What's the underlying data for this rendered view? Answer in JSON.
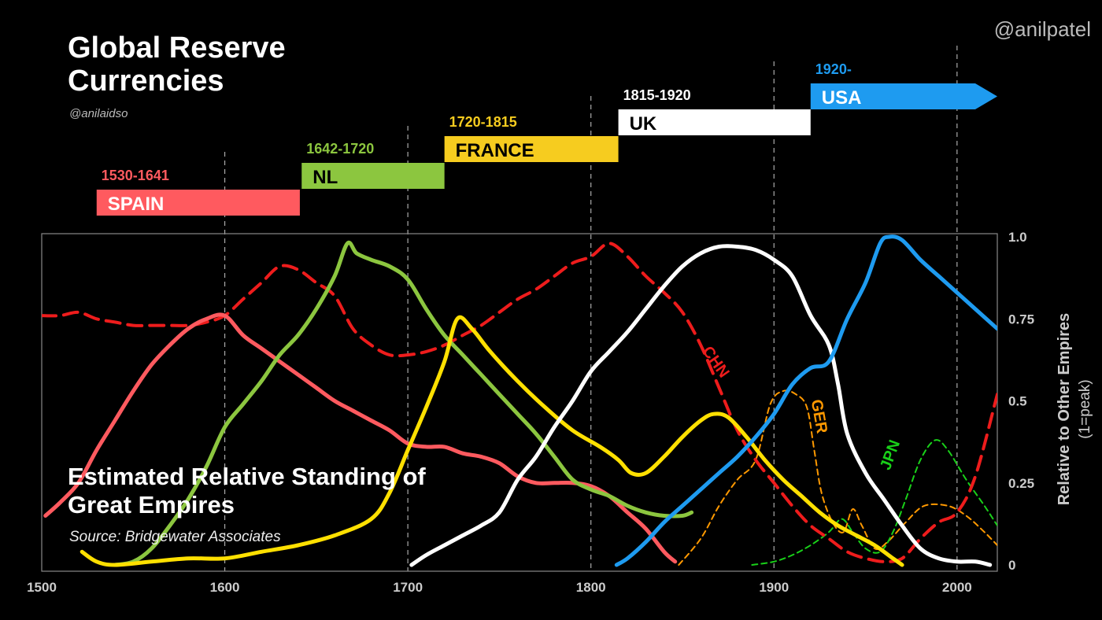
{
  "header": {
    "title": "Global Reserve Currencies",
    "byline": "@anilaidso",
    "handle": "@anilpatel"
  },
  "chart_title": "Estimated Relative Standing of Great Empires",
  "source": "Source: Bridgewater Associates",
  "colors": {
    "spain": "#ff5a5f",
    "nl": "#8cc63f",
    "france": "#f6cc1f",
    "uk": "#ffffff",
    "usa": "#1e9bf0",
    "chn": "#ee1c1c",
    "ger": "#ff9900",
    "jpn": "#19d019",
    "france_line": "#ffe000"
  },
  "eras": [
    {
      "name": "SPAIN",
      "years": "1530-1641",
      "start": 1530,
      "end": 1641,
      "color": "#ff5a5f",
      "text_color": "#ffffff"
    },
    {
      "name": "NL",
      "years": "1642-1720",
      "start": 1642,
      "end": 1720,
      "color": "#8cc63f",
      "text_color": "#000000"
    },
    {
      "name": "FRANCE",
      "years": "1720-1815",
      "start": 1720,
      "end": 1815,
      "color": "#f6cc1f",
      "text_color": "#000000"
    },
    {
      "name": "UK",
      "years": "1815-1920",
      "start": 1815,
      "end": 1920,
      "color": "#ffffff",
      "text_color": "#000000"
    },
    {
      "name": "USA",
      "years": "1920-",
      "start": 1920,
      "end": 2022,
      "color": "#1e9bf0",
      "text_color": "#ffffff"
    }
  ],
  "chart_data": {
    "type": "line",
    "title": "Estimated Relative Standing of Great Empires",
    "xlabel": "",
    "ylabel": "Relative to Other Empires (1=peak)",
    "ylabel_line1": "Relative to Other Empires",
    "ylabel_line2": "(1=peak)",
    "xlim": [
      1500,
      2022
    ],
    "ylim": [
      0,
      1
    ],
    "xticks": [
      1500,
      1600,
      1700,
      1800,
      1900,
      2000
    ],
    "yticks": [
      {
        "value": 1.0,
        "label": "1.0"
      },
      {
        "value": 0.75,
        "label": "0.75"
      },
      {
        "value": 0.5,
        "label": "0.5"
      },
      {
        "value": 0.25,
        "label": "0.25"
      },
      {
        "value": 0,
        "label": "0"
      }
    ],
    "vlines": [
      1600,
      1700,
      1800,
      1900,
      2000
    ],
    "series": [
      {
        "key": "spain",
        "color": "#ff5a5f",
        "width": 5,
        "dash": "",
        "points": [
          [
            1502,
            0.15
          ],
          [
            1510,
            0.19
          ],
          [
            1520,
            0.25
          ],
          [
            1530,
            0.35
          ],
          [
            1540,
            0.44
          ],
          [
            1550,
            0.53
          ],
          [
            1560,
            0.61
          ],
          [
            1570,
            0.67
          ],
          [
            1580,
            0.72
          ],
          [
            1590,
            0.75
          ],
          [
            1600,
            0.76
          ],
          [
            1610,
            0.7
          ],
          [
            1620,
            0.66
          ],
          [
            1630,
            0.62
          ],
          [
            1640,
            0.58
          ],
          [
            1650,
            0.54
          ],
          [
            1660,
            0.5
          ],
          [
            1670,
            0.47
          ],
          [
            1680,
            0.44
          ],
          [
            1690,
            0.41
          ],
          [
            1700,
            0.37
          ],
          [
            1710,
            0.36
          ],
          [
            1720,
            0.36
          ],
          [
            1730,
            0.34
          ],
          [
            1740,
            0.33
          ],
          [
            1750,
            0.31
          ],
          [
            1760,
            0.27
          ],
          [
            1770,
            0.25
          ],
          [
            1780,
            0.25
          ],
          [
            1790,
            0.25
          ],
          [
            1800,
            0.24
          ],
          [
            1810,
            0.21
          ],
          [
            1820,
            0.16
          ],
          [
            1830,
            0.11
          ],
          [
            1840,
            0.04
          ],
          [
            1846,
            0.01
          ]
        ]
      },
      {
        "key": "nl",
        "color": "#8cc63f",
        "width": 5,
        "dash": "",
        "points": [
          [
            1540,
            0.0
          ],
          [
            1550,
            0.01
          ],
          [
            1560,
            0.05
          ],
          [
            1570,
            0.12
          ],
          [
            1580,
            0.2
          ],
          [
            1590,
            0.3
          ],
          [
            1600,
            0.42
          ],
          [
            1610,
            0.49
          ],
          [
            1620,
            0.56
          ],
          [
            1630,
            0.64
          ],
          [
            1640,
            0.7
          ],
          [
            1650,
            0.78
          ],
          [
            1660,
            0.88
          ],
          [
            1667,
            0.98
          ],
          [
            1672,
            0.95
          ],
          [
            1680,
            0.93
          ],
          [
            1690,
            0.91
          ],
          [
            1700,
            0.87
          ],
          [
            1710,
            0.78
          ],
          [
            1720,
            0.7
          ],
          [
            1730,
            0.64
          ],
          [
            1740,
            0.58
          ],
          [
            1750,
            0.52
          ],
          [
            1760,
            0.46
          ],
          [
            1770,
            0.4
          ],
          [
            1780,
            0.33
          ],
          [
            1790,
            0.26
          ],
          [
            1800,
            0.23
          ],
          [
            1810,
            0.21
          ],
          [
            1820,
            0.18
          ],
          [
            1830,
            0.16
          ],
          [
            1840,
            0.15
          ],
          [
            1850,
            0.15
          ],
          [
            1855,
            0.16
          ]
        ]
      },
      {
        "key": "france",
        "color": "#ffe000",
        "width": 5,
        "dash": "",
        "points": [
          [
            1522,
            0.04
          ],
          [
            1530,
            0.01
          ],
          [
            1540,
            0.0
          ],
          [
            1560,
            0.01
          ],
          [
            1580,
            0.02
          ],
          [
            1600,
            0.02
          ],
          [
            1620,
            0.04
          ],
          [
            1640,
            0.06
          ],
          [
            1660,
            0.09
          ],
          [
            1680,
            0.14
          ],
          [
            1690,
            0.22
          ],
          [
            1700,
            0.35
          ],
          [
            1710,
            0.48
          ],
          [
            1720,
            0.62
          ],
          [
            1727,
            0.75
          ],
          [
            1735,
            0.72
          ],
          [
            1745,
            0.65
          ],
          [
            1760,
            0.56
          ],
          [
            1775,
            0.48
          ],
          [
            1790,
            0.41
          ],
          [
            1805,
            0.36
          ],
          [
            1815,
            0.32
          ],
          [
            1822,
            0.28
          ],
          [
            1830,
            0.28
          ],
          [
            1840,
            0.33
          ],
          [
            1850,
            0.39
          ],
          [
            1860,
            0.44
          ],
          [
            1867,
            0.46
          ],
          [
            1875,
            0.45
          ],
          [
            1885,
            0.39
          ],
          [
            1895,
            0.32
          ],
          [
            1905,
            0.26
          ],
          [
            1915,
            0.21
          ],
          [
            1925,
            0.16
          ],
          [
            1935,
            0.12
          ],
          [
            1945,
            0.09
          ],
          [
            1955,
            0.06
          ],
          [
            1965,
            0.02
          ],
          [
            1970,
            0.0
          ]
        ]
      },
      {
        "key": "uk",
        "color": "#ffffff",
        "width": 5,
        "dash": "",
        "points": [
          [
            1702,
            0.0
          ],
          [
            1710,
            0.03
          ],
          [
            1720,
            0.06
          ],
          [
            1730,
            0.09
          ],
          [
            1740,
            0.12
          ],
          [
            1750,
            0.16
          ],
          [
            1760,
            0.26
          ],
          [
            1770,
            0.33
          ],
          [
            1780,
            0.42
          ],
          [
            1790,
            0.5
          ],
          [
            1800,
            0.59
          ],
          [
            1810,
            0.65
          ],
          [
            1820,
            0.71
          ],
          [
            1830,
            0.78
          ],
          [
            1840,
            0.85
          ],
          [
            1850,
            0.91
          ],
          [
            1860,
            0.95
          ],
          [
            1870,
            0.97
          ],
          [
            1880,
            0.97
          ],
          [
            1890,
            0.96
          ],
          [
            1900,
            0.93
          ],
          [
            1910,
            0.88
          ],
          [
            1920,
            0.76
          ],
          [
            1930,
            0.67
          ],
          [
            1935,
            0.55
          ],
          [
            1940,
            0.4
          ],
          [
            1950,
            0.28
          ],
          [
            1960,
            0.2
          ],
          [
            1970,
            0.12
          ],
          [
            1980,
            0.05
          ],
          [
            1990,
            0.02
          ],
          [
            2000,
            0.01
          ],
          [
            2010,
            0.01
          ],
          [
            2018,
            0.0
          ]
        ]
      },
      {
        "key": "usa",
        "color": "#1e9bf0",
        "width": 5,
        "dash": "",
        "points": [
          [
            1814,
            0.0
          ],
          [
            1820,
            0.02
          ],
          [
            1830,
            0.07
          ],
          [
            1840,
            0.13
          ],
          [
            1850,
            0.18
          ],
          [
            1860,
            0.23
          ],
          [
            1870,
            0.28
          ],
          [
            1880,
            0.33
          ],
          [
            1890,
            0.39
          ],
          [
            1900,
            0.46
          ],
          [
            1910,
            0.55
          ],
          [
            1920,
            0.6
          ],
          [
            1930,
            0.62
          ],
          [
            1940,
            0.75
          ],
          [
            1950,
            0.86
          ],
          [
            1958,
            0.98
          ],
          [
            1963,
            1.0
          ],
          [
            1970,
            0.99
          ],
          [
            1980,
            0.93
          ],
          [
            1990,
            0.88
          ],
          [
            2000,
            0.83
          ],
          [
            2010,
            0.78
          ],
          [
            2022,
            0.72
          ]
        ]
      },
      {
        "key": "chn",
        "color": "#ee1c1c",
        "width": 4,
        "dash": "18,10",
        "points": [
          [
            1500,
            0.76
          ],
          [
            1510,
            0.76
          ],
          [
            1520,
            0.77
          ],
          [
            1530,
            0.75
          ],
          [
            1540,
            0.74
          ],
          [
            1550,
            0.73
          ],
          [
            1560,
            0.73
          ],
          [
            1570,
            0.73
          ],
          [
            1580,
            0.73
          ],
          [
            1590,
            0.74
          ],
          [
            1600,
            0.76
          ],
          [
            1610,
            0.81
          ],
          [
            1620,
            0.86
          ],
          [
            1630,
            0.91
          ],
          [
            1640,
            0.9
          ],
          [
            1650,
            0.86
          ],
          [
            1660,
            0.82
          ],
          [
            1670,
            0.72
          ],
          [
            1680,
            0.67
          ],
          [
            1690,
            0.64
          ],
          [
            1700,
            0.64
          ],
          [
            1710,
            0.65
          ],
          [
            1720,
            0.67
          ],
          [
            1730,
            0.7
          ],
          [
            1740,
            0.73
          ],
          [
            1750,
            0.77
          ],
          [
            1760,
            0.81
          ],
          [
            1770,
            0.84
          ],
          [
            1780,
            0.88
          ],
          [
            1790,
            0.92
          ],
          [
            1800,
            0.94
          ],
          [
            1810,
            0.98
          ],
          [
            1820,
            0.94
          ],
          [
            1830,
            0.88
          ],
          [
            1840,
            0.83
          ],
          [
            1850,
            0.77
          ],
          [
            1860,
            0.67
          ],
          [
            1870,
            0.54
          ],
          [
            1880,
            0.41
          ],
          [
            1890,
            0.32
          ],
          [
            1900,
            0.25
          ],
          [
            1910,
            0.18
          ],
          [
            1920,
            0.12
          ],
          [
            1930,
            0.08
          ],
          [
            1940,
            0.04
          ],
          [
            1950,
            0.02
          ],
          [
            1960,
            0.01
          ],
          [
            1970,
            0.02
          ],
          [
            1980,
            0.08
          ],
          [
            1990,
            0.13
          ],
          [
            2000,
            0.16
          ],
          [
            2010,
            0.27
          ],
          [
            2022,
            0.52
          ]
        ]
      },
      {
        "key": "ger",
        "color": "#ff9900",
        "width": 2,
        "dash": "7,5",
        "points": [
          [
            1848,
            0.0
          ],
          [
            1860,
            0.08
          ],
          [
            1870,
            0.18
          ],
          [
            1880,
            0.26
          ],
          [
            1890,
            0.32
          ],
          [
            1898,
            0.49
          ],
          [
            1905,
            0.53
          ],
          [
            1912,
            0.52
          ],
          [
            1918,
            0.48
          ],
          [
            1922,
            0.35
          ],
          [
            1926,
            0.22
          ],
          [
            1932,
            0.13
          ],
          [
            1938,
            0.1
          ],
          [
            1943,
            0.17
          ],
          [
            1948,
            0.12
          ],
          [
            1955,
            0.05
          ],
          [
            1962,
            0.07
          ],
          [
            1972,
            0.13
          ],
          [
            1982,
            0.18
          ],
          [
            1995,
            0.18
          ],
          [
            2005,
            0.15
          ],
          [
            2015,
            0.1
          ],
          [
            2022,
            0.06
          ]
        ]
      },
      {
        "key": "jpn",
        "color": "#19d019",
        "width": 2,
        "dash": "7,5",
        "points": [
          [
            1888,
            0.0
          ],
          [
            1900,
            0.01
          ],
          [
            1910,
            0.03
          ],
          [
            1920,
            0.06
          ],
          [
            1930,
            0.1
          ],
          [
            1937,
            0.14
          ],
          [
            1943,
            0.1
          ],
          [
            1950,
            0.05
          ],
          [
            1958,
            0.04
          ],
          [
            1965,
            0.1
          ],
          [
            1972,
            0.2
          ],
          [
            1980,
            0.32
          ],
          [
            1988,
            0.38
          ],
          [
            1995,
            0.35
          ],
          [
            2005,
            0.26
          ],
          [
            2015,
            0.18
          ],
          [
            2022,
            0.12
          ]
        ]
      }
    ],
    "annotations": [
      {
        "text": "CHN",
        "x": 1866,
        "y": 0.61,
        "color": "#ee1c1c",
        "rotate": 55
      },
      {
        "text": "GER",
        "x": 1922,
        "y": 0.45,
        "color": "#ff9900",
        "rotate": 80
      },
      {
        "text": "JPN",
        "x": 1966,
        "y": 0.33,
        "color": "#19d019",
        "rotate": -70
      }
    ]
  }
}
